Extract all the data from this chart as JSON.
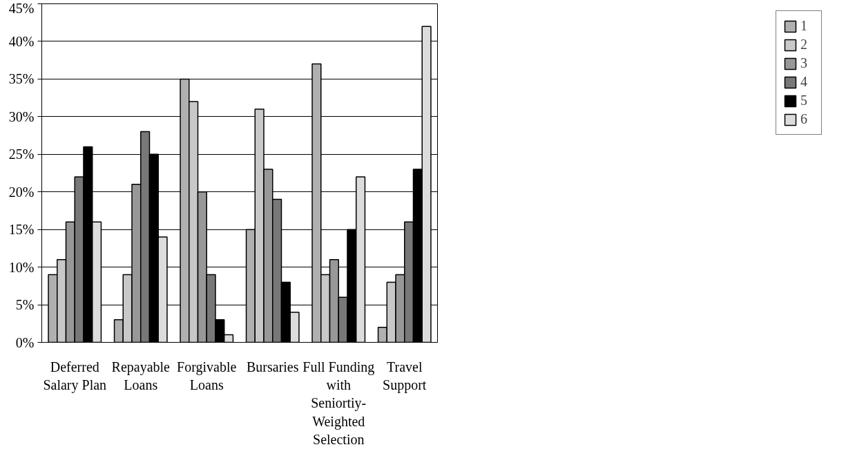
{
  "chart_data": {
    "type": "bar",
    "categories": [
      "Deferred Salary Plan",
      "Repayable Loans",
      "Forgivable Loans",
      "Bursaries",
      "Full Funding with Seniortiy-Weighted Selection",
      "Travel Support"
    ],
    "series": [
      {
        "name": "1",
        "color": "#b0b0b0",
        "values": [
          9,
          3,
          35,
          15,
          37,
          2
        ]
      },
      {
        "name": "2",
        "color": "#c8c8c8",
        "values": [
          11,
          9,
          32,
          31,
          9,
          8
        ]
      },
      {
        "name": "3",
        "color": "#989898",
        "values": [
          16,
          21,
          20,
          23,
          11,
          9
        ]
      },
      {
        "name": "4",
        "color": "#787878",
        "values": [
          22,
          28,
          9,
          19,
          6,
          16
        ]
      },
      {
        "name": "5",
        "color": "#000000",
        "values": [
          26,
          25,
          3,
          8,
          15,
          23
        ]
      },
      {
        "name": "6",
        "color": "#dcdcdc",
        "values": [
          16,
          14,
          1,
          4,
          22,
          42
        ]
      }
    ],
    "ylim": [
      0,
      45
    ],
    "yticks": [
      {
        "value": 0,
        "label": "0%"
      },
      {
        "value": 5,
        "label": "5%"
      },
      {
        "value": 10,
        "label": "10%"
      },
      {
        "value": 15,
        "label": "15%"
      },
      {
        "value": 20,
        "label": "20%"
      },
      {
        "value": 25,
        "label": "25%"
      },
      {
        "value": 30,
        "label": "30%"
      },
      {
        "value": 35,
        "label": "35%"
      },
      {
        "value": 40,
        "label": "40%"
      },
      {
        "value": 45,
        "label": "45%"
      }
    ],
    "grid": "y",
    "legend": "right"
  }
}
